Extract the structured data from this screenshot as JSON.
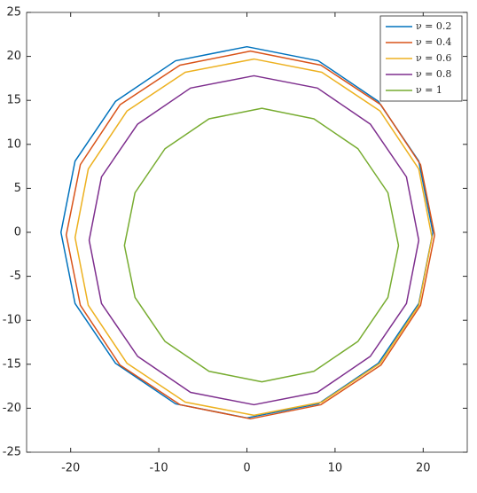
{
  "chart_data": {
    "type": "line",
    "xlim": [
      -25,
      25
    ],
    "xticks": [
      -20,
      -10,
      0,
      10,
      20
    ],
    "ylim": [
      -25,
      25
    ],
    "yticks": [
      -25,
      -20,
      -15,
      -10,
      -5,
      0,
      5,
      10,
      15,
      20,
      25
    ],
    "grid": false,
    "legend": "northeast",
    "series": [
      {
        "name": "ν = 0.2",
        "color": "#0072BD",
        "x": [
          21.1,
          19.5,
          14.9,
          8.1,
          0,
          -8.1,
          -14.9,
          -19.5,
          -21.1,
          -19.5,
          -14.9,
          -8.1,
          0,
          8.1,
          14.9,
          19.5,
          21.1
        ],
        "values": [
          0,
          8.1,
          14.9,
          19.5,
          21.1,
          19.5,
          14.9,
          8.1,
          0,
          -8.1,
          -14.9,
          -19.5,
          -21.1,
          -19.5,
          -14.9,
          -8.1,
          0
        ]
      },
      {
        "name": "ν = 0.4",
        "color": "#D95319",
        "x": [
          21.3,
          19.7,
          15.2,
          8.4,
          0.4,
          -7.6,
          -14.4,
          -18.9,
          -20.5,
          -18.9,
          -14.4,
          -7.6,
          0.4,
          8.4,
          15.2,
          19.7,
          21.3
        ],
        "values": [
          -0.3,
          7.7,
          14.5,
          19.0,
          20.6,
          19.0,
          14.5,
          7.7,
          -0.3,
          -8.3,
          -15.1,
          -19.6,
          -21.2,
          -19.6,
          -15.1,
          -8.3,
          -0.3
        ]
      },
      {
        "name": "ν = 0.6",
        "color": "#EDB120",
        "x": [
          21.0,
          19.5,
          15.1,
          8.5,
          0.8,
          -7.0,
          -13.6,
          -18.0,
          -19.5,
          -18.0,
          -13.6,
          -7.0,
          0.8,
          8.5,
          15.1,
          19.5,
          21.0
        ],
        "values": [
          -0.6,
          7.2,
          13.8,
          18.2,
          19.7,
          18.2,
          13.8,
          7.2,
          -0.6,
          -8.3,
          -14.9,
          -19.3,
          -20.8,
          -19.3,
          -14.9,
          -8.3,
          -0.6
        ]
      },
      {
        "name": "ν = 0.8",
        "color": "#7E2F8E",
        "x": [
          19.5,
          18.1,
          14.0,
          8.0,
          0.8,
          -6.4,
          -12.4,
          -16.5,
          -17.9,
          -16.5,
          -12.4,
          -6.4,
          0.8,
          8.0,
          14.0,
          18.1,
          19.5
        ],
        "values": [
          -0.9,
          6.3,
          12.3,
          16.4,
          17.8,
          16.4,
          12.3,
          6.3,
          -0.9,
          -8.1,
          -14.1,
          -18.2,
          -19.6,
          -18.2,
          -14.1,
          -8.1,
          -0.9
        ]
      },
      {
        "name": "ν = 1",
        "color": "#77AC30",
        "x": [
          17.2,
          16.0,
          12.6,
          7.6,
          1.7,
          -4.3,
          -9.3,
          -12.7,
          -13.9,
          -12.7,
          -9.3,
          -4.3,
          1.7,
          7.6,
          12.6,
          16.0,
          17.2
        ],
        "values": [
          -1.5,
          4.5,
          9.5,
          12.9,
          14.1,
          12.9,
          9.5,
          4.5,
          -1.5,
          -7.4,
          -12.4,
          -15.8,
          -17.0,
          -15.8,
          -12.4,
          -7.4,
          -1.5
        ]
      }
    ]
  }
}
